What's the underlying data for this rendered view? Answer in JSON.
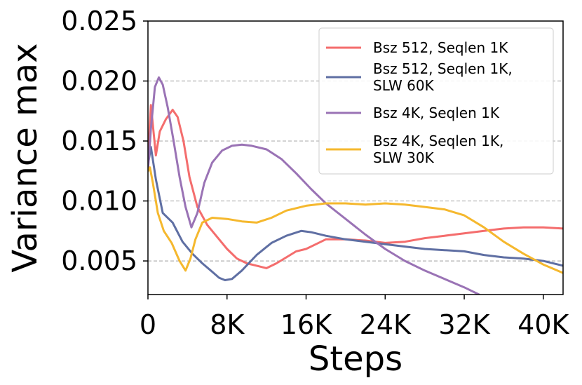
{
  "chart_data": {
    "type": "line",
    "title": "",
    "xlabel": "Steps",
    "ylabel": "Variance max",
    "xlim": [
      0,
      42000
    ],
    "ylim": [
      0.0022,
      0.025
    ],
    "x_ticks": [
      0,
      8000,
      16000,
      24000,
      32000,
      40000
    ],
    "x_tick_labels": [
      "0",
      "8K",
      "16K",
      "24K",
      "32K",
      "40K"
    ],
    "y_ticks": [
      0.005,
      0.01,
      0.015,
      0.02,
      0.025
    ],
    "y_tick_labels": [
      "0.005",
      "0.010",
      "0.015",
      "0.020",
      "0.025"
    ],
    "grid": "horizontal dashed",
    "legend_position": "top-right",
    "series": [
      {
        "name": "Bsz 512, Seqlen 1K",
        "color": "#f46d6d",
        "x": [
          0,
          300,
          800,
          1200,
          1800,
          2500,
          3000,
          3600,
          4200,
          5000,
          6000,
          7000,
          8000,
          9000,
          10000,
          11000,
          12000,
          13000,
          14000,
          15000,
          16000,
          17000,
          18000,
          20000,
          22000,
          24000,
          26000,
          28000,
          30000,
          32000,
          34000,
          36000,
          38000,
          40000,
          42000
        ],
        "y": [
          0.0135,
          0.018,
          0.0138,
          0.0158,
          0.0168,
          0.0176,
          0.017,
          0.015,
          0.012,
          0.0095,
          0.008,
          0.007,
          0.006,
          0.0052,
          0.0048,
          0.0046,
          0.0044,
          0.0048,
          0.0053,
          0.0058,
          0.006,
          0.0064,
          0.0068,
          0.0068,
          0.0067,
          0.0065,
          0.0066,
          0.0069,
          0.0071,
          0.0073,
          0.0075,
          0.0077,
          0.0078,
          0.0078,
          0.0077
        ]
      },
      {
        "name": "Bsz 512, Seqlen 1K,\nSLW 60K",
        "color": "#5f6fa3",
        "x": [
          0,
          300,
          800,
          1500,
          2500,
          3500,
          4500,
          5500,
          6500,
          7200,
          7800,
          8500,
          9500,
          11000,
          12500,
          14000,
          15500,
          16500,
          18000,
          20000,
          22000,
          24000,
          26000,
          28000,
          30000,
          32000,
          34000,
          36000,
          38000,
          40000,
          42000
        ],
        "y": [
          0.013,
          0.0145,
          0.0118,
          0.009,
          0.0082,
          0.0066,
          0.0056,
          0.0048,
          0.0041,
          0.0036,
          0.0034,
          0.0035,
          0.0042,
          0.0055,
          0.0065,
          0.0071,
          0.0075,
          0.0074,
          0.0071,
          0.0068,
          0.0066,
          0.0064,
          0.0062,
          0.006,
          0.0059,
          0.0058,
          0.0055,
          0.0053,
          0.0052,
          0.005,
          0.0046
        ]
      },
      {
        "name": "Bsz 4K, Seqlen 1K",
        "color": "#9a73b5",
        "x": [
          0,
          300,
          700,
          1100,
          1500,
          2000,
          2600,
          3200,
          3800,
          4400,
          5000,
          5700,
          6500,
          7500,
          8500,
          9500,
          10500,
          12000,
          13500,
          15000,
          16500,
          18000,
          20000,
          22000,
          24000,
          26000,
          28000,
          30000,
          32000,
          33500
        ],
        "y": [
          0.0125,
          0.016,
          0.0195,
          0.0203,
          0.0197,
          0.0178,
          0.015,
          0.012,
          0.0095,
          0.0078,
          0.009,
          0.0115,
          0.0132,
          0.0142,
          0.0146,
          0.0147,
          0.0146,
          0.0143,
          0.0135,
          0.0123,
          0.011,
          0.0098,
          0.0085,
          0.0072,
          0.006,
          0.005,
          0.0042,
          0.0035,
          0.0028,
          0.0022
        ]
      },
      {
        "name": "Bsz 4K, Seqlen 1K,\nSLW 30K",
        "color": "#f5b82e",
        "x": [
          0,
          200,
          500,
          1000,
          1600,
          2400,
          3200,
          3800,
          4300,
          4800,
          5500,
          6500,
          8000,
          9500,
          11000,
          12500,
          14000,
          16000,
          18000,
          20000,
          22000,
          24000,
          26000,
          28000,
          30000,
          32000,
          34000,
          36000,
          38000,
          40000,
          42000
        ],
        "y": [
          0.0125,
          0.0128,
          0.0115,
          0.009,
          0.0075,
          0.0065,
          0.005,
          0.0042,
          0.0052,
          0.0068,
          0.0082,
          0.0086,
          0.0085,
          0.0083,
          0.0082,
          0.0086,
          0.0092,
          0.0096,
          0.0098,
          0.0098,
          0.0097,
          0.0098,
          0.0097,
          0.0095,
          0.0093,
          0.0088,
          0.0078,
          0.0066,
          0.0056,
          0.0047,
          0.004
        ]
      }
    ]
  }
}
